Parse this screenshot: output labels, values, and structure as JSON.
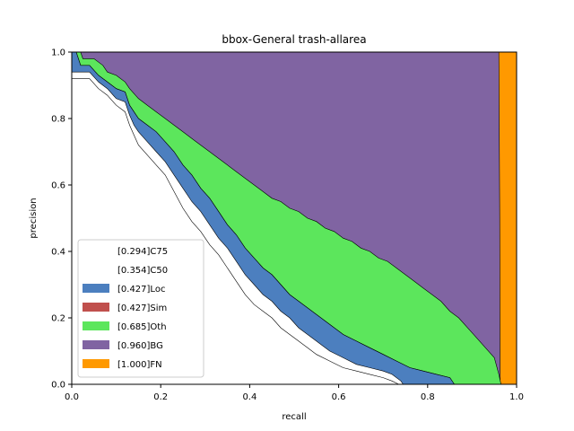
{
  "chart_data": {
    "type": "area",
    "title": "bbox-General trash-allarea",
    "xlabel": "recall",
    "ylabel": "precision",
    "xlim": [
      0.0,
      1.0
    ],
    "ylim": [
      0.0,
      1.0
    ],
    "x_ticks": [
      "0.0",
      "0.2",
      "0.4",
      "0.6",
      "0.8",
      "1.0"
    ],
    "y_ticks": [
      "0.0",
      "0.2",
      "0.4",
      "0.6",
      "0.8",
      "1.0"
    ],
    "grid": false,
    "legend_position": "lower-left",
    "series": [
      {
        "name": "[0.294]C75",
        "color": "#ffffff",
        "points": [
          [
            0.0,
            0.92
          ],
          [
            0.04,
            0.92
          ],
          [
            0.06,
            0.89
          ],
          [
            0.08,
            0.87
          ],
          [
            0.1,
            0.84
          ],
          [
            0.12,
            0.82
          ],
          [
            0.13,
            0.78
          ],
          [
            0.14,
            0.75
          ],
          [
            0.15,
            0.72
          ],
          [
            0.17,
            0.69
          ],
          [
            0.19,
            0.66
          ],
          [
            0.21,
            0.63
          ],
          [
            0.23,
            0.58
          ],
          [
            0.25,
            0.53
          ],
          [
            0.27,
            0.49
          ],
          [
            0.29,
            0.46
          ],
          [
            0.31,
            0.42
          ],
          [
            0.33,
            0.39
          ],
          [
            0.35,
            0.35
          ],
          [
            0.37,
            0.31
          ],
          [
            0.39,
            0.27
          ],
          [
            0.41,
            0.24
          ],
          [
            0.43,
            0.22
          ],
          [
            0.45,
            0.2
          ],
          [
            0.47,
            0.17
          ],
          [
            0.49,
            0.15
          ],
          [
            0.51,
            0.13
          ],
          [
            0.53,
            0.11
          ],
          [
            0.55,
            0.09
          ],
          [
            0.58,
            0.07
          ],
          [
            0.61,
            0.05
          ],
          [
            0.64,
            0.04
          ],
          [
            0.67,
            0.03
          ],
          [
            0.7,
            0.02
          ],
          [
            0.72,
            0.01
          ],
          [
            0.735,
            0.0
          ]
        ]
      },
      {
        "name": "[0.354]C50",
        "color": "#ffffff",
        "points": [
          [
            0.0,
            0.94
          ],
          [
            0.04,
            0.94
          ],
          [
            0.06,
            0.91
          ],
          [
            0.08,
            0.89
          ],
          [
            0.1,
            0.86
          ],
          [
            0.12,
            0.85
          ],
          [
            0.13,
            0.81
          ],
          [
            0.14,
            0.78
          ],
          [
            0.15,
            0.76
          ],
          [
            0.17,
            0.73
          ],
          [
            0.19,
            0.7
          ],
          [
            0.21,
            0.67
          ],
          [
            0.23,
            0.63
          ],
          [
            0.25,
            0.59
          ],
          [
            0.27,
            0.55
          ],
          [
            0.29,
            0.52
          ],
          [
            0.31,
            0.48
          ],
          [
            0.33,
            0.44
          ],
          [
            0.35,
            0.41
          ],
          [
            0.37,
            0.37
          ],
          [
            0.39,
            0.33
          ],
          [
            0.41,
            0.3
          ],
          [
            0.43,
            0.27
          ],
          [
            0.45,
            0.25
          ],
          [
            0.47,
            0.22
          ],
          [
            0.49,
            0.2
          ],
          [
            0.51,
            0.17
          ],
          [
            0.53,
            0.15
          ],
          [
            0.55,
            0.13
          ],
          [
            0.58,
            0.1
          ],
          [
            0.61,
            0.08
          ],
          [
            0.64,
            0.06
          ],
          [
            0.67,
            0.05
          ],
          [
            0.7,
            0.04
          ],
          [
            0.72,
            0.03
          ],
          [
            0.74,
            0.01
          ],
          [
            0.745,
            0.0
          ]
        ]
      },
      {
        "name": "[0.427]Loc",
        "color": "#4c7fbf",
        "points": [
          [
            0.0,
            1.0
          ],
          [
            0.01,
            1.0
          ],
          [
            0.02,
            0.96
          ],
          [
            0.04,
            0.96
          ],
          [
            0.06,
            0.93
          ],
          [
            0.08,
            0.91
          ],
          [
            0.1,
            0.89
          ],
          [
            0.12,
            0.88
          ],
          [
            0.13,
            0.84
          ],
          [
            0.14,
            0.82
          ],
          [
            0.15,
            0.8
          ],
          [
            0.17,
            0.78
          ],
          [
            0.19,
            0.76
          ],
          [
            0.21,
            0.73
          ],
          [
            0.23,
            0.7
          ],
          [
            0.25,
            0.66
          ],
          [
            0.27,
            0.63
          ],
          [
            0.29,
            0.59
          ],
          [
            0.31,
            0.56
          ],
          [
            0.33,
            0.52
          ],
          [
            0.35,
            0.48
          ],
          [
            0.37,
            0.45
          ],
          [
            0.39,
            0.41
          ],
          [
            0.41,
            0.38
          ],
          [
            0.43,
            0.35
          ],
          [
            0.45,
            0.33
          ],
          [
            0.47,
            0.3
          ],
          [
            0.49,
            0.27
          ],
          [
            0.51,
            0.25
          ],
          [
            0.53,
            0.23
          ],
          [
            0.55,
            0.21
          ],
          [
            0.58,
            0.18
          ],
          [
            0.61,
            0.15
          ],
          [
            0.64,
            0.13
          ],
          [
            0.67,
            0.11
          ],
          [
            0.7,
            0.09
          ],
          [
            0.73,
            0.07
          ],
          [
            0.76,
            0.05
          ],
          [
            0.79,
            0.04
          ],
          [
            0.82,
            0.03
          ],
          [
            0.85,
            0.02
          ],
          [
            0.86,
            0.0
          ]
        ]
      },
      {
        "name": "[0.427]Sim",
        "color": "#c0504d",
        "points": [
          [
            0.0,
            1.0
          ],
          [
            0.01,
            1.0
          ],
          [
            0.02,
            0.96
          ],
          [
            0.04,
            0.96
          ],
          [
            0.06,
            0.93
          ],
          [
            0.08,
            0.91
          ],
          [
            0.1,
            0.89
          ],
          [
            0.12,
            0.88
          ],
          [
            0.13,
            0.84
          ],
          [
            0.14,
            0.82
          ],
          [
            0.15,
            0.8
          ],
          [
            0.17,
            0.78
          ],
          [
            0.19,
            0.76
          ],
          [
            0.21,
            0.73
          ],
          [
            0.23,
            0.7
          ],
          [
            0.25,
            0.66
          ],
          [
            0.27,
            0.63
          ],
          [
            0.29,
            0.59
          ],
          [
            0.31,
            0.56
          ],
          [
            0.33,
            0.52
          ],
          [
            0.35,
            0.48
          ],
          [
            0.37,
            0.45
          ],
          [
            0.39,
            0.41
          ],
          [
            0.41,
            0.38
          ],
          [
            0.43,
            0.35
          ],
          [
            0.45,
            0.33
          ],
          [
            0.47,
            0.3
          ],
          [
            0.49,
            0.27
          ],
          [
            0.51,
            0.25
          ],
          [
            0.53,
            0.23
          ],
          [
            0.55,
            0.21
          ],
          [
            0.58,
            0.18
          ],
          [
            0.61,
            0.15
          ],
          [
            0.64,
            0.13
          ],
          [
            0.67,
            0.11
          ],
          [
            0.7,
            0.09
          ],
          [
            0.73,
            0.07
          ],
          [
            0.76,
            0.05
          ],
          [
            0.79,
            0.04
          ],
          [
            0.82,
            0.03
          ],
          [
            0.85,
            0.02
          ],
          [
            0.86,
            0.0
          ]
        ]
      },
      {
        "name": "[0.685]Oth",
        "color": "#5ce65c",
        "points": [
          [
            0.0,
            1.0
          ],
          [
            0.02,
            1.0
          ],
          [
            0.025,
            0.98
          ],
          [
            0.05,
            0.98
          ],
          [
            0.07,
            0.96
          ],
          [
            0.08,
            0.94
          ],
          [
            0.1,
            0.93
          ],
          [
            0.12,
            0.91
          ],
          [
            0.13,
            0.89
          ],
          [
            0.15,
            0.86
          ],
          [
            0.17,
            0.84
          ],
          [
            0.19,
            0.82
          ],
          [
            0.21,
            0.8
          ],
          [
            0.23,
            0.78
          ],
          [
            0.25,
            0.76
          ],
          [
            0.27,
            0.74
          ],
          [
            0.29,
            0.72
          ],
          [
            0.31,
            0.7
          ],
          [
            0.33,
            0.68
          ],
          [
            0.35,
            0.66
          ],
          [
            0.37,
            0.64
          ],
          [
            0.39,
            0.62
          ],
          [
            0.41,
            0.6
          ],
          [
            0.43,
            0.58
          ],
          [
            0.45,
            0.56
          ],
          [
            0.47,
            0.55
          ],
          [
            0.49,
            0.53
          ],
          [
            0.51,
            0.52
          ],
          [
            0.53,
            0.5
          ],
          [
            0.55,
            0.49
          ],
          [
            0.57,
            0.47
          ],
          [
            0.59,
            0.46
          ],
          [
            0.61,
            0.44
          ],
          [
            0.63,
            0.43
          ],
          [
            0.65,
            0.41
          ],
          [
            0.67,
            0.4
          ],
          [
            0.69,
            0.38
          ],
          [
            0.71,
            0.37
          ],
          [
            0.73,
            0.35
          ],
          [
            0.75,
            0.33
          ],
          [
            0.77,
            0.31
          ],
          [
            0.79,
            0.29
          ],
          [
            0.81,
            0.27
          ],
          [
            0.83,
            0.25
          ],
          [
            0.85,
            0.22
          ],
          [
            0.87,
            0.2
          ],
          [
            0.89,
            0.17
          ],
          [
            0.91,
            0.14
          ],
          [
            0.93,
            0.11
          ],
          [
            0.95,
            0.08
          ],
          [
            0.96,
            0.03
          ],
          [
            0.965,
            0.0
          ]
        ]
      },
      {
        "name": "[0.960]BG",
        "color": "#8064a2",
        "points": [
          [
            0.0,
            1.0
          ],
          [
            0.96,
            1.0
          ],
          [
            0.962,
            0.5
          ],
          [
            0.963,
            0.0
          ]
        ]
      },
      {
        "name": "[1.000]FN",
        "color": "#ff9900",
        "points": [
          [
            0.0,
            1.0
          ],
          [
            1.0,
            1.0
          ],
          [
            1.0,
            0.0
          ]
        ]
      }
    ]
  }
}
